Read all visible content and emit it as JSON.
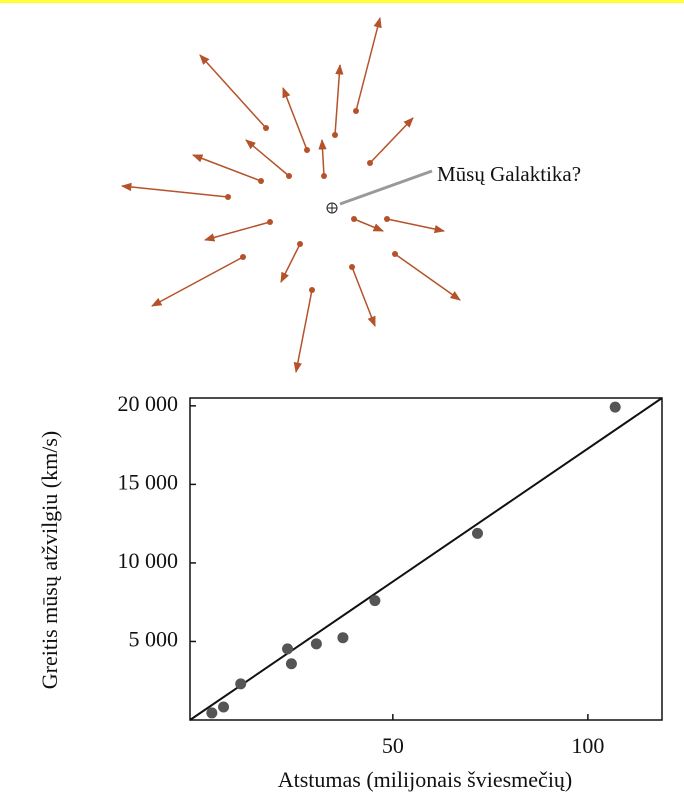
{
  "diagram": {
    "label": "Mūsų Galaktika?"
  },
  "chart_data": {
    "type": "scatter",
    "xlabel": "Atstumas (milijonais šviesmečių)",
    "ylabel": "Greitis mūsų atžvilgiu (km/s)",
    "x": [
      3.6,
      6.6,
      11,
      23,
      24,
      30.4,
      37.2,
      45.4,
      71.7,
      107
    ],
    "y": [
      450,
      830,
      2300,
      4530,
      3580,
      4850,
      5240,
      7600,
      11880,
      19920
    ],
    "color": "#555555",
    "fit": {
      "x": [
        -2,
        119
      ],
      "y": [
        0,
        20500
      ]
    },
    "xlim": [
      -2,
      119
    ],
    "ylim": [
      0,
      20500
    ],
    "xticks": [
      50,
      100
    ],
    "yticks": [
      {
        "value": 5000,
        "label": "5 000"
      },
      {
        "value": 10000,
        "label": "10 000"
      },
      {
        "value": 15000,
        "label": "15 000"
      },
      {
        "value": 20000,
        "label": "20 000"
      }
    ]
  }
}
